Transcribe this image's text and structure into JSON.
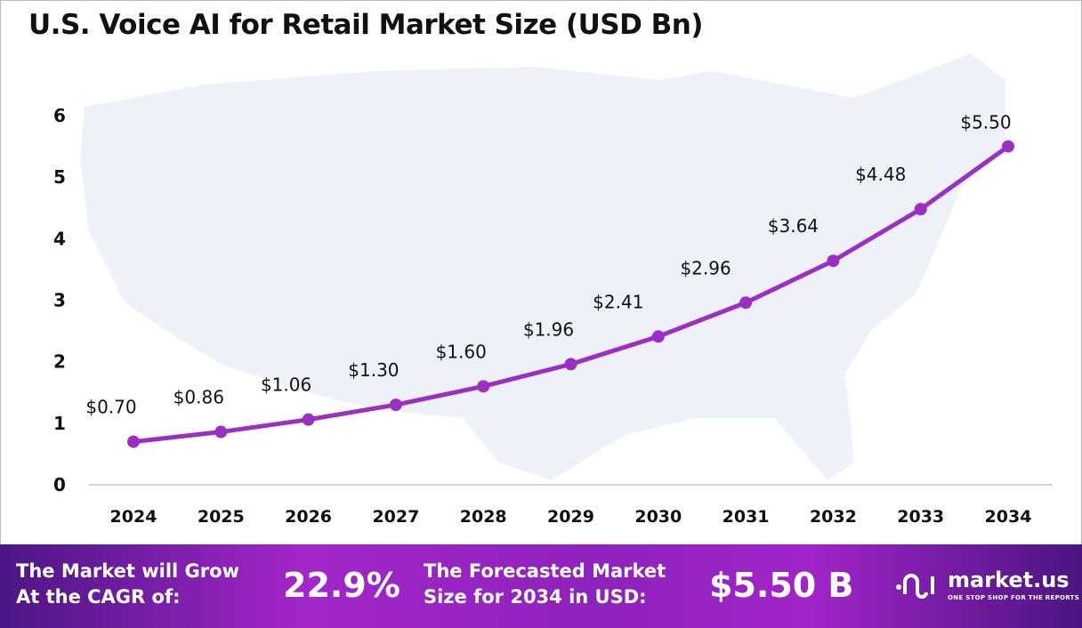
{
  "chart_data": {
    "type": "line",
    "title": "U.S. Voice AI for Retail Market  Size (USD Bn)",
    "categories": [
      "2024",
      "2025",
      "2026",
      "2027",
      "2028",
      "2029",
      "2030",
      "2031",
      "2032",
      "2033",
      "2034"
    ],
    "values": [
      0.7,
      0.86,
      1.06,
      1.3,
      1.6,
      1.96,
      2.41,
      2.96,
      3.64,
      4.48,
      5.5
    ],
    "data_labels": [
      "$0.70",
      "$0.86",
      "$1.06",
      "$1.30",
      "$1.60",
      "$1.96",
      "$2.41",
      "$2.96",
      "$3.64",
      "$4.48",
      "$5.50"
    ],
    "yticks": [
      "0",
      "1",
      "2",
      "3",
      "4",
      "5",
      "6"
    ],
    "ylim": [
      0,
      6
    ],
    "grid": false,
    "line_color": "#9b2fc4"
  },
  "banner": {
    "cagr_label_1": "The Market will Grow",
    "cagr_label_2": "At the CAGR of:",
    "cagr_value": "22.9%",
    "forecast_label_1": "The Forecasted Market",
    "forecast_label_2": "Size for 2034 in USD:",
    "forecast_value": "$5.50 B",
    "brand": "market.us",
    "tagline": "ONE STOP SHOP FOR THE REPORTS"
  }
}
